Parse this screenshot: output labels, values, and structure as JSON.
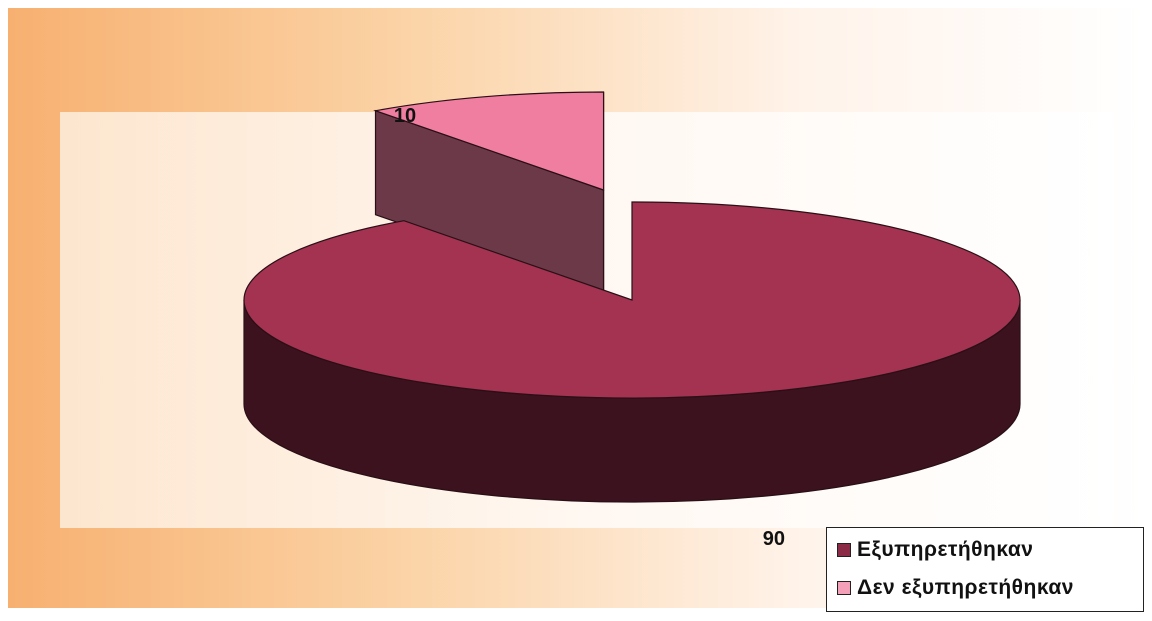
{
  "chart_data": {
    "type": "pie",
    "title": "",
    "categories": [
      "Εξυπηρετήθηκαν",
      "Δεν εξυπηρετήθηκαν"
    ],
    "values": [
      90,
      10
    ],
    "data_labels": [
      "90",
      "10"
    ],
    "legend_position": "bottom-right",
    "exploded": "Δεν εξυπηρετήθηκαν",
    "style": "3d",
    "colors": {
      "Εξυπηρετήθηκαν": "#a33350",
      "Δεν εξυπηρετήθηκαν": "#f07ea0"
    }
  },
  "legend": {
    "items": [
      {
        "label": "Εξυπηρετήθηκαν",
        "color": "#8c2b45"
      },
      {
        "label": "Δεν εξυπηρετήθηκαν",
        "color": "#f4a0b8"
      }
    ]
  }
}
